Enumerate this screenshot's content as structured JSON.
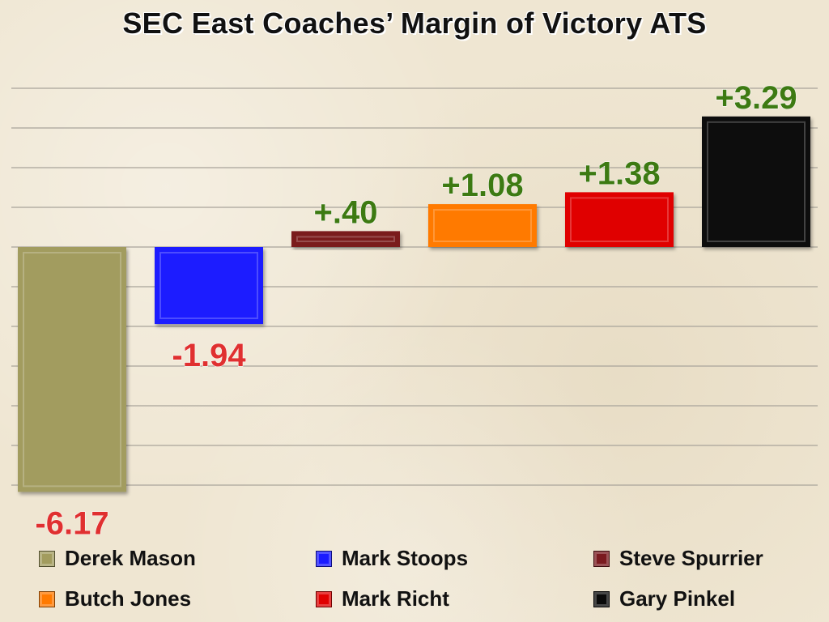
{
  "chart_data": {
    "type": "bar",
    "title": "SEC East Coaches’ Margin of Victory ATS",
    "categories": [
      "Derek Mason",
      "Mark Stoops",
      "Steve Spurrier",
      "Butch Jones",
      "Mark Richt",
      "Gary Pinkel"
    ],
    "values": [
      -6.17,
      -1.94,
      0.4,
      1.08,
      1.38,
      3.29
    ],
    "data_labels": [
      "-6.17",
      "-1.94",
      "+.40",
      "+1.08",
      "+1.38",
      "+3.29"
    ],
    "colors": [
      "#a29c5e",
      "#1a1aff",
      "#7a1a1f",
      "#ff7a00",
      "#e00000",
      "#0a0a0a"
    ],
    "label_colors": {
      "positive": "#3d7a12",
      "negative": "#e03030"
    },
    "ylim": [
      -6.17,
      4
    ],
    "grid": true,
    "legend_position": "bottom"
  }
}
